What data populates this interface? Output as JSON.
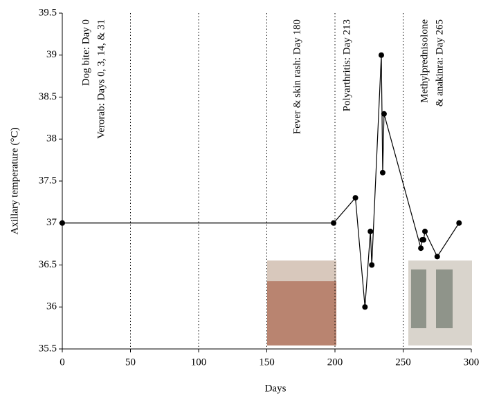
{
  "chart_data": {
    "type": "line",
    "xlabel": "Days",
    "ylabel": "Axillary temperature (°C)",
    "x": [
      0,
      199,
      215,
      222,
      226,
      227,
      234,
      235,
      236,
      263,
      264,
      265,
      266,
      275,
      291
    ],
    "series": [
      {
        "color": "#000000",
        "values": [
          37.0,
          37.0,
          37.3,
          36.0,
          36.9,
          36.5,
          39.0,
          37.6,
          38.3,
          36.7,
          36.8,
          36.8,
          36.9,
          36.6,
          37.0
        ]
      }
    ],
    "xlim": [
      0,
      300
    ],
    "xticks": [
      0,
      50,
      100,
      150,
      200,
      250,
      300
    ],
    "ylim": [
      35.5,
      39.5
    ],
    "yticks": [
      35.5,
      36,
      36.5,
      37,
      37.5,
      38,
      38.5,
      39,
      39.5
    ],
    "grid": "x",
    "annotations": [
      "Dog bite: Day 0",
      "Verorab: Days 0, 3, 14, & 31",
      "Fever & skin rash: Day 180",
      "Polyarthritis: Day 213",
      "Methylprednisolone",
      "& anakinra: Day 265"
    ]
  }
}
